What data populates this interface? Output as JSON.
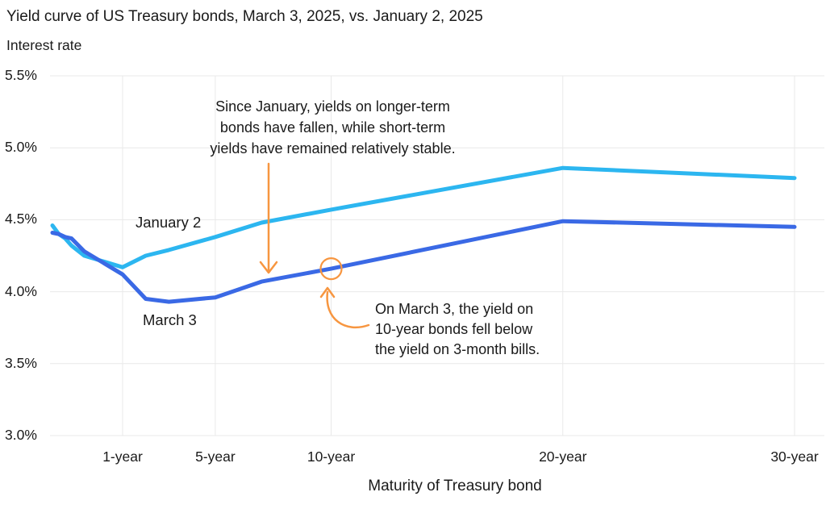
{
  "chart_data": {
    "type": "line",
    "title": "Yield curve of US Treasury bonds, March 3, 2025, vs. January 2, 2025",
    "ylabel": "Interest rate",
    "xlabel": "Maturity of Treasury bond",
    "ylim": [
      3.0,
      5.5
    ],
    "grid": true,
    "legend_position": "inline-labels",
    "y_ticks": [
      {
        "value": 5.5,
        "label": "5.5%"
      },
      {
        "value": 5.0,
        "label": "5.0%"
      },
      {
        "value": 4.5,
        "label": "4.5%"
      },
      {
        "value": 4.0,
        "label": "4.0%"
      },
      {
        "value": 3.5,
        "label": "3.5%"
      },
      {
        "value": 3.0,
        "label": "3.0%"
      }
    ],
    "x_ticks": [
      {
        "months": 12,
        "label": "1-year"
      },
      {
        "months": 60,
        "label": "5-year"
      },
      {
        "months": 120,
        "label": "10-year"
      },
      {
        "months": 240,
        "label": "20-year"
      },
      {
        "months": 360,
        "label": "30-year"
      }
    ],
    "maturities_months": [
      1,
      2,
      3,
      4,
      6,
      12,
      24,
      36,
      60,
      84,
      120,
      240,
      360
    ],
    "series": [
      {
        "name": "January 2",
        "color": "#2CB6F0",
        "values": [
          4.46,
          4.4,
          4.37,
          4.32,
          4.25,
          4.17,
          4.25,
          4.29,
          4.38,
          4.48,
          4.57,
          4.86,
          4.79
        ]
      },
      {
        "name": "March 3",
        "color": "#3A69E5",
        "values": [
          4.41,
          4.4,
          4.38,
          4.37,
          4.28,
          4.12,
          3.95,
          3.93,
          3.96,
          4.07,
          4.16,
          4.49,
          4.45
        ]
      }
    ]
  },
  "annotations": {
    "accent_color": "#F79640",
    "trend_note": {
      "lines": [
        "Since January, yields on longer-term",
        "bonds have fallen, while short-term",
        "yields have remained relatively stable."
      ]
    },
    "inversion_note": {
      "lines": [
        "On March 3, the yield on",
        "10-year bonds fell below",
        "the yield on 3-month bills."
      ],
      "highlight": {
        "series": "March 3",
        "maturity_months": 120,
        "value": 4.16
      }
    }
  }
}
